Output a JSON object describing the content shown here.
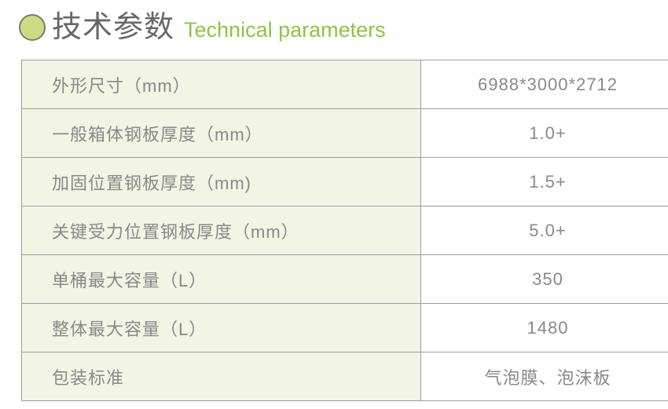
{
  "header": {
    "title_zh": "技术参数",
    "title_en": "Technical parameters",
    "accent_color": "#8cc63f",
    "bullet_fill_color": "#cbdd80",
    "bullet_stroke_color": "#7c7d6b"
  },
  "table": {
    "label_bg_color": "#f2f4e4",
    "value_bg_color": "#ffffff",
    "border_color": "#9d9d9d",
    "text_color": "#898989",
    "rows": [
      {
        "label": "外形尺寸（mm）",
        "value": "6988*3000*2712"
      },
      {
        "label": "一般箱体钢板厚度（mm）",
        "value": "1.0+"
      },
      {
        "label": "加固位置钢板厚度（mm)",
        "value": "1.5+"
      },
      {
        "label": "关键受力位置钢板厚度（mm）",
        "value": "5.0+"
      },
      {
        "label": "单桶最大容量（L）",
        "value": "350"
      },
      {
        "label": "整体最大容量（L）",
        "value": "1480"
      },
      {
        "label": "包装标准",
        "value": "气泡膜、泡沫板"
      }
    ]
  }
}
